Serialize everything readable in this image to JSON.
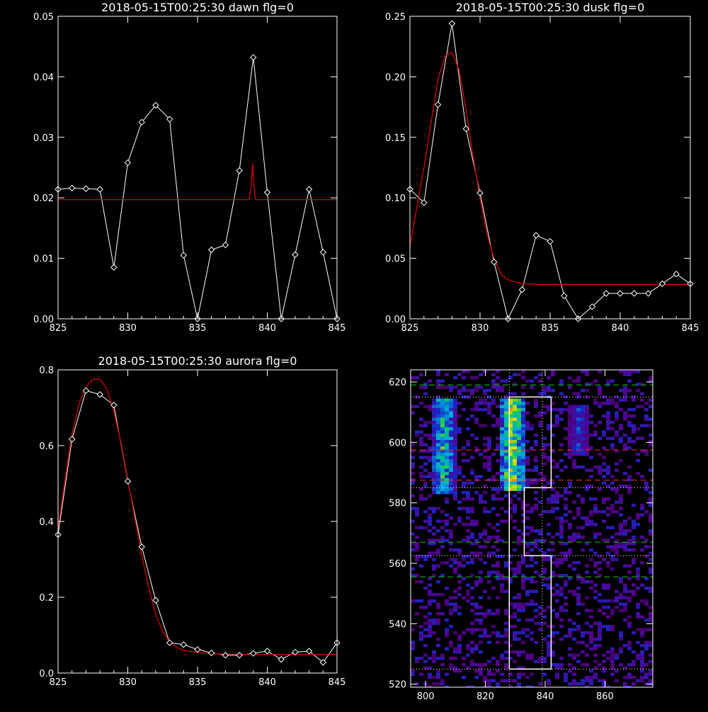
{
  "colors": {
    "background": "#000000",
    "axes": "#ffffff",
    "data": "#ffffff",
    "fit": "#d40000",
    "guide_dotted": "#ffffff",
    "guide_green": "#00c800",
    "guide_red": "#ff3030",
    "box": "#ffffff"
  },
  "chart_data": [
    {
      "id": "dawn",
      "type": "line",
      "title": "2018-05-15T00:25:30 dawn flg=0",
      "xlim": [
        825,
        845
      ],
      "ylim": [
        0,
        0.05
      ],
      "xticks": [
        "825",
        "830",
        "835",
        "840",
        "845"
      ],
      "yticks": [
        "0.00",
        "0.01",
        "0.02",
        "0.03",
        "0.04",
        "0.05"
      ],
      "series": [
        {
          "role": "data",
          "marker": "diamond",
          "x": [
            825,
            826,
            827,
            828,
            829,
            830,
            831,
            832,
            833,
            834,
            835,
            836,
            837,
            838,
            839,
            840,
            841,
            842,
            843,
            844,
            845
          ],
          "y": [
            0.0214,
            0.0216,
            0.0215,
            0.0214,
            0.0085,
            0.0258,
            0.0325,
            0.0353,
            0.033,
            0.0105,
            0.0,
            0.0114,
            0.0122,
            0.0245,
            0.0432,
            0.0209,
            0.0,
            0.0106,
            0.0214,
            0.011,
            0.0
          ]
        },
        {
          "role": "fit",
          "x": [
            825,
            838.7,
            838.85,
            838.95,
            839.05,
            839.15,
            839.3,
            845
          ],
          "y": [
            0.0197,
            0.0197,
            0.022,
            0.0257,
            0.022,
            0.0197,
            0.0197,
            0.0197
          ]
        }
      ]
    },
    {
      "id": "dusk",
      "type": "line",
      "title": "2018-05-15T00:25:30 dusk flg=0",
      "xlim": [
        825,
        845
      ],
      "ylim": [
        0,
        0.25
      ],
      "xticks": [
        "825",
        "830",
        "835",
        "840",
        "845"
      ],
      "yticks": [
        "0.00",
        "0.05",
        "0.10",
        "0.15",
        "0.20",
        "0.25"
      ],
      "series": [
        {
          "role": "data",
          "marker": "diamond",
          "x": [
            825,
            826,
            827,
            828,
            829,
            830,
            831,
            832,
            833,
            834,
            835,
            836,
            837,
            838,
            839,
            840,
            841,
            842,
            843,
            844,
            845
          ],
          "y": [
            0.107,
            0.096,
            0.177,
            0.244,
            0.157,
            0.104,
            0.047,
            0.0,
            0.024,
            0.069,
            0.064,
            0.019,
            0.0,
            0.01,
            0.021,
            0.021,
            0.021,
            0.021,
            0.029,
            0.037,
            0.029
          ]
        },
        {
          "role": "fit",
          "x": [
            825,
            826,
            827,
            827.5,
            828,
            828.5,
            829,
            829.5,
            830,
            830.5,
            831,
            831.5,
            832,
            833,
            834,
            835,
            840,
            845
          ],
          "y": [
            0.06,
            0.125,
            0.198,
            0.217,
            0.22,
            0.206,
            0.173,
            0.134,
            0.1,
            0.07,
            0.05,
            0.037,
            0.032,
            0.029,
            0.0285,
            0.0285,
            0.0285,
            0.0285
          ]
        }
      ]
    },
    {
      "id": "aurora",
      "type": "line",
      "title": "2018-05-15T00:25:30 aurora flg=0",
      "xlim": [
        825,
        845
      ],
      "ylim": [
        0,
        0.8
      ],
      "xticks": [
        "825",
        "830",
        "835",
        "840",
        "845"
      ],
      "yticks": [
        "0.0",
        "0.2",
        "0.4",
        "0.6",
        "0.8"
      ],
      "series": [
        {
          "role": "data",
          "marker": "diamond",
          "x": [
            825,
            826,
            827,
            828,
            829,
            830,
            831,
            832,
            833,
            834,
            835,
            836,
            837,
            838,
            839,
            840,
            841,
            842,
            843,
            844,
            845
          ],
          "y": [
            0.365,
            0.617,
            0.745,
            0.735,
            0.707,
            0.506,
            0.333,
            0.192,
            0.08,
            0.075,
            0.062,
            0.053,
            0.047,
            0.047,
            0.052,
            0.058,
            0.036,
            0.055,
            0.058,
            0.028,
            0.08
          ]
        },
        {
          "role": "fit",
          "x": [
            825,
            825.5,
            826,
            826.5,
            827,
            827.5,
            828,
            828.5,
            829,
            829.5,
            830,
            830.5,
            831,
            831.5,
            832,
            832.5,
            833,
            833.5,
            834,
            835,
            836,
            838,
            840,
            845
          ],
          "y": [
            0.38,
            0.51,
            0.63,
            0.71,
            0.755,
            0.775,
            0.775,
            0.75,
            0.69,
            0.61,
            0.51,
            0.41,
            0.31,
            0.225,
            0.155,
            0.11,
            0.082,
            0.068,
            0.06,
            0.054,
            0.051,
            0.049,
            0.049,
            0.049
          ]
        }
      ]
    },
    {
      "id": "spectrogram",
      "type": "heatmap",
      "title": "",
      "xlim": [
        795,
        876
      ],
      "ylim": [
        519,
        624
      ],
      "xticks": [
        "800",
        "820",
        "840",
        "860"
      ],
      "yticks": [
        "520",
        "540",
        "560",
        "580",
        "600",
        "620"
      ],
      "hot_bands": [
        {
          "x": [
            802,
            810
          ],
          "y": [
            583,
            615
          ],
          "peak": 0.75
        },
        {
          "x": [
            825,
            833
          ],
          "y": [
            584,
            615
          ],
          "peak": 1.0
        },
        {
          "x": [
            848,
            855
          ],
          "y": [
            595,
            612
          ],
          "peak": 0.4
        }
      ],
      "guide_lines": {
        "dotted_vertical_x": [
          828,
          839
        ],
        "dotted_horizontal_y": [
          525,
          562.5,
          585,
          615
        ],
        "green_dashed_y": [
          555.5,
          567,
          619
        ],
        "red_dashed_y": [
          587.5,
          597.5
        ]
      },
      "outline_path_xy": [
        [
          828,
          525
        ],
        [
          842,
          525
        ],
        [
          842,
          562.5
        ],
        [
          833,
          562.5
        ],
        [
          833,
          585
        ],
        [
          842,
          585
        ],
        [
          842,
          615
        ],
        [
          828,
          615
        ],
        [
          828,
          525
        ]
      ]
    }
  ]
}
